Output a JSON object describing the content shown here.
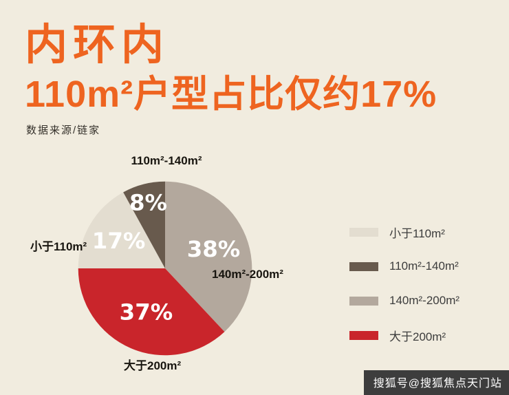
{
  "header": {
    "title": "内环内",
    "subtitle": "110m²户型占比仅约17%",
    "source": "数据来源/链家"
  },
  "colors": {
    "background": "#f1ecdf",
    "accent_orange": "#ee6420",
    "percent_text": "#ffffff",
    "watermark_bg": "#3d3d3d"
  },
  "chart_data": {
    "type": "pie",
    "title": "内环内110m²户型占比仅约17%",
    "source": "数据来源/链家",
    "start_angle_deg": 0,
    "direction": "clockwise",
    "legend_position": "right",
    "slices": [
      {
        "label": "140m²-200m²",
        "value": 38,
        "pct_label": "38%",
        "color": "#b3a89d"
      },
      {
        "label": "大于200m²",
        "value": 37,
        "pct_label": "37%",
        "color": "#c9252b"
      },
      {
        "label": "小于110m²",
        "value": 17,
        "pct_label": "17%",
        "color": "#e3ddd0"
      },
      {
        "label": "110m²-140m²",
        "value": 8,
        "pct_label": "8%",
        "color": "#685a4d"
      }
    ]
  },
  "legend_order_note": "top-to-bottom rows reference slices 2,3,0,1",
  "watermark": "搜狐号@搜狐焦点天门站"
}
